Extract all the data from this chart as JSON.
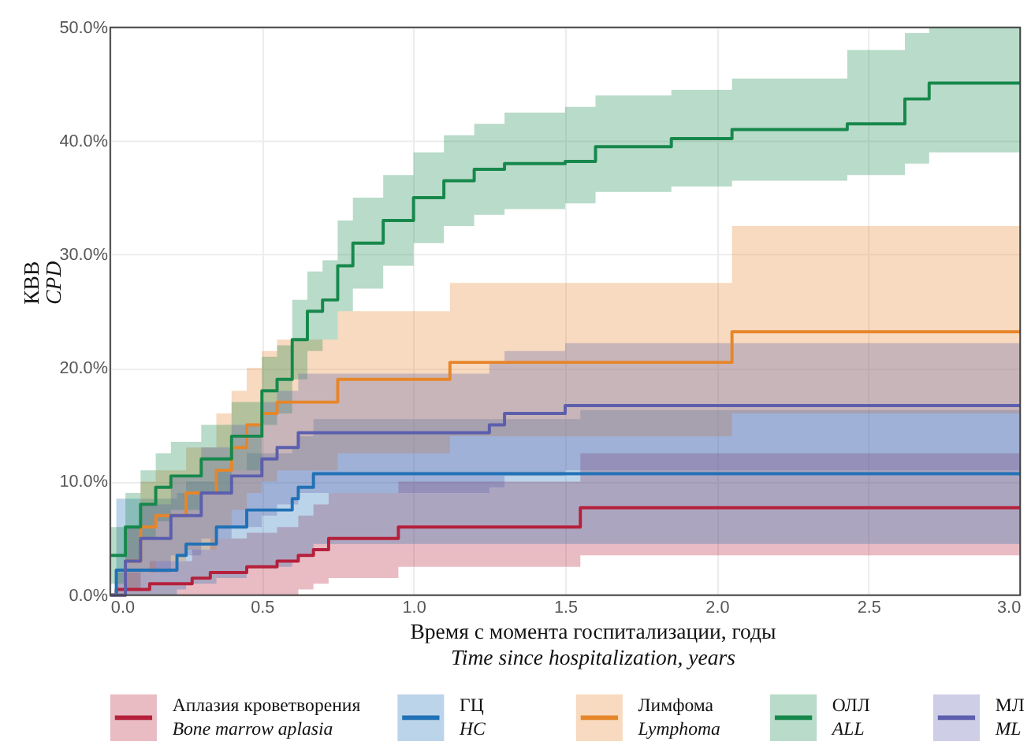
{
  "chart_data": {
    "type": "step",
    "xlabel": "Время с момента госпитализации, годы\nTime since hospitalization, years",
    "ylabel": "КВВ\nCPD",
    "xlim": [
      0,
      3.0
    ],
    "ylim": [
      0,
      50
    ],
    "xticks": [
      {
        "value": 0,
        "label": "0.0"
      },
      {
        "value": 0.5,
        "label": "0.5"
      },
      {
        "value": 1,
        "label": "1.0"
      },
      {
        "value": 1.5,
        "label": "1.5"
      },
      {
        "value": 2,
        "label": "2.0"
      },
      {
        "value": 2.5,
        "label": "2.5"
      },
      {
        "value": 3,
        "label": "3.0"
      }
    ],
    "yticks": [
      {
        "value": 0,
        "label": "0.0%"
      },
      {
        "value": 10,
        "label": "10.0%"
      },
      {
        "value": 20,
        "label": "20.0%"
      },
      {
        "value": 30,
        "label": "30.0%"
      },
      {
        "value": 40,
        "label": "40.0%"
      },
      {
        "value": 50,
        "label": "50.0%"
      }
    ],
    "grid": true,
    "legend": "bottom",
    "line_style": "solid",
    "marker": "none",
    "series": [
      {
        "name": "Аплазия кроветворения\nBone marrow aplasia",
        "color": "#b5203a",
        "x": [
          0,
          0.02,
          0.13,
          0.27,
          0.33,
          0.45,
          0.55,
          0.62,
          0.67,
          0.72,
          0.95,
          1.55,
          3.0
        ],
        "values": [
          0,
          0.5,
          1,
          1.5,
          2,
          2.5,
          3,
          3.5,
          4,
          5,
          6,
          7.7,
          7.7
        ],
        "lower": [
          0,
          0,
          0,
          0,
          0,
          0,
          0,
          0.5,
          1,
          1.5,
          2.5,
          3.5,
          3.5
        ],
        "upper": [
          0,
          2,
          3,
          4,
          5,
          5.5,
          6,
          7,
          8,
          9,
          10,
          12.5,
          12.5
        ]
      },
      {
        "name": "ГЦ\nHC",
        "color": "#2171b5",
        "x": [
          0,
          0.02,
          0.22,
          0.25,
          0.35,
          0.45,
          0.6,
          0.62,
          0.67,
          1.55,
          3.0
        ],
        "values": [
          0,
          2.2,
          3.5,
          4.5,
          6,
          7.5,
          8.5,
          9.5,
          10.7,
          10.7,
          10.7
        ],
        "lower": [
          0,
          0,
          0.5,
          1,
          1.5,
          2.5,
          3,
          3.5,
          4.5,
          4.5,
          4.5
        ],
        "upper": [
          0,
          8.5,
          9,
          10,
          11,
          12.5,
          13,
          14,
          15.5,
          16.3,
          16.3
        ]
      },
      {
        "name": "Лимфома\nLymphoma",
        "color": "#e6862a",
        "x": [
          0,
          0.05,
          0.1,
          0.15,
          0.25,
          0.35,
          0.4,
          0.45,
          0.5,
          0.55,
          0.75,
          1.12,
          2.05,
          3.0
        ],
        "values": [
          0,
          3,
          6,
          7,
          9,
          11,
          13,
          15,
          16,
          17,
          19,
          20.5,
          23.2,
          23.2
        ],
        "lower": [
          0,
          0.5,
          2,
          3,
          4,
          6,
          7.5,
          9,
          10,
          11,
          12.5,
          14,
          16,
          16
        ],
        "upper": [
          0,
          6,
          10,
          11,
          13,
          16,
          18,
          20,
          21.5,
          22.5,
          25,
          27.5,
          32.5,
          32.5
        ]
      },
      {
        "name": "ОЛЛ\nALL",
        "color": "#17884c",
        "x": [
          0,
          0.05,
          0.1,
          0.15,
          0.2,
          0.3,
          0.4,
          0.5,
          0.55,
          0.6,
          0.65,
          0.7,
          0.75,
          0.8,
          0.9,
          1.0,
          1.1,
          1.2,
          1.3,
          1.5,
          1.6,
          1.85,
          2.05,
          2.43,
          2.62,
          2.7,
          3.0
        ],
        "values": [
          3.5,
          6,
          8,
          9.5,
          10.5,
          12,
          14,
          18,
          19,
          22.5,
          25,
          26,
          29,
          31,
          33,
          35,
          36.5,
          37.5,
          38,
          38.2,
          39.5,
          40.2,
          41,
          41.5,
          43.7,
          45.1,
          45.1
        ],
        "lower": [
          1,
          3,
          5,
          6.5,
          7.5,
          9,
          11,
          15,
          16,
          19,
          21.5,
          22.5,
          25,
          27,
          29,
          31,
          32.5,
          33.5,
          34,
          34.5,
          35.5,
          36,
          36.5,
          37,
          38,
          39,
          39
        ],
        "upper": [
          6,
          9,
          11,
          12.5,
          13.5,
          15,
          17,
          21,
          22,
          26,
          28.5,
          29.5,
          33,
          35,
          37,
          39,
          40.5,
          41.5,
          42.5,
          43,
          44,
          44.5,
          45.5,
          48,
          49.5,
          50,
          50
        ]
      },
      {
        "name": "МЛ\nML",
        "color": "#5c5fad",
        "x": [
          0,
          0.05,
          0.1,
          0.2,
          0.3,
          0.4,
          0.5,
          0.55,
          0.62,
          1.25,
          1.3,
          1.5,
          3.0
        ],
        "values": [
          0,
          3,
          5,
          7,
          9,
          10.5,
          12,
          13,
          14.3,
          15,
          16,
          16.7,
          16.7
        ],
        "lower": [
          0,
          0.5,
          2,
          3.5,
          5,
          6,
          7,
          8,
          9,
          9.5,
          10.5,
          11,
          11
        ],
        "upper": [
          0,
          6,
          8,
          10.5,
          13,
          15,
          17,
          18,
          19.5,
          20.5,
          21.5,
          22.2,
          22.2
        ]
      }
    ]
  }
}
